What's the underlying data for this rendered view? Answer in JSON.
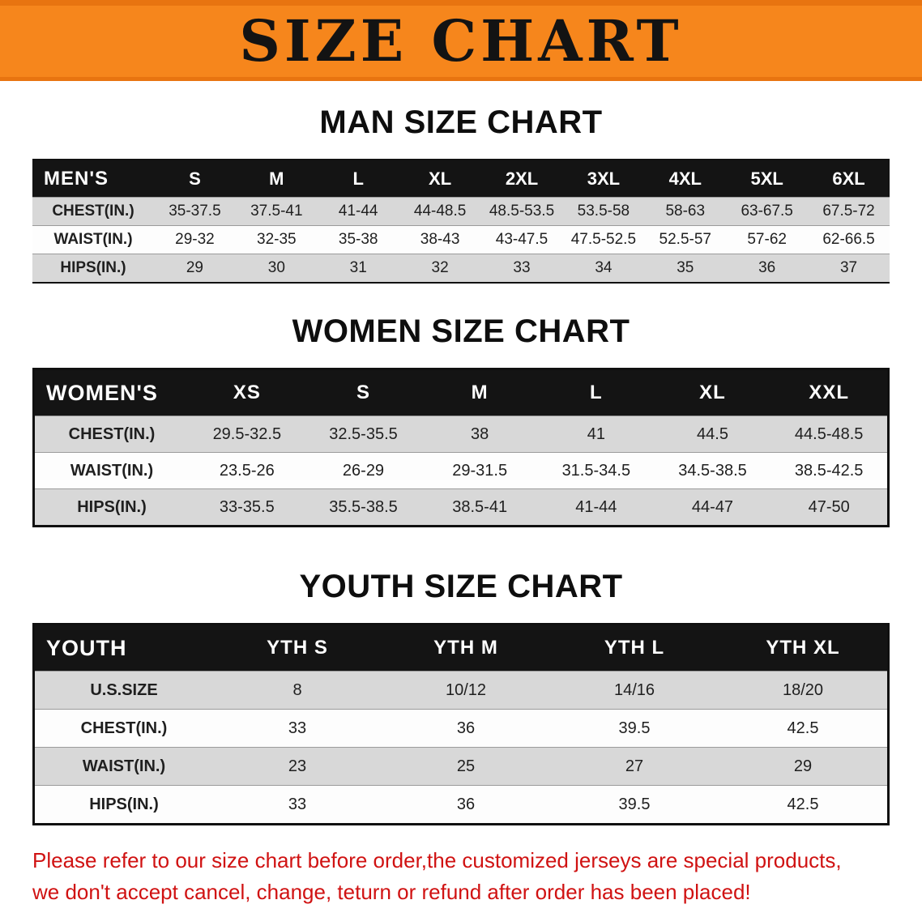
{
  "banner": {
    "title": "SIZE CHART"
  },
  "sections": [
    {
      "heading": "MAN SIZE CHART",
      "table": {
        "header": [
          "MEN'S",
          "S",
          "M",
          "L",
          "XL",
          "2XL",
          "3XL",
          "4XL",
          "5XL",
          "6XL"
        ],
        "rows": [
          {
            "label": "CHEST(IN.)",
            "values": [
              "35-37.5",
              "37.5-41",
              "41-44",
              "44-48.5",
              "48.5-53.5",
              "53.5-58",
              "58-63",
              "63-67.5",
              "67.5-72"
            ]
          },
          {
            "label": "WAIST(IN.)",
            "values": [
              "29-32",
              "32-35",
              "35-38",
              "38-43",
              "43-47.5",
              "47.5-52.5",
              "52.5-57",
              "57-62",
              "62-66.5"
            ]
          },
          {
            "label": "HIPS(IN.)",
            "values": [
              "29",
              "30",
              "31",
              "32",
              "33",
              "34",
              "35",
              "36",
              "37"
            ]
          }
        ]
      }
    },
    {
      "heading": "WOMEN SIZE CHART",
      "table": {
        "header": [
          "WOMEN'S",
          "XS",
          "S",
          "M",
          "L",
          "XL",
          "XXL"
        ],
        "rows": [
          {
            "label": "CHEST(IN.)",
            "values": [
              "29.5-32.5",
              "32.5-35.5",
              "38",
              "41",
              "44.5",
              "44.5-48.5"
            ]
          },
          {
            "label": "WAIST(IN.)",
            "values": [
              "23.5-26",
              "26-29",
              "29-31.5",
              "31.5-34.5",
              "34.5-38.5",
              "38.5-42.5"
            ]
          },
          {
            "label": "HIPS(IN.)",
            "values": [
              "33-35.5",
              "35.5-38.5",
              "38.5-41",
              "41-44",
              "44-47",
              "47-50"
            ]
          }
        ]
      }
    },
    {
      "heading": "YOUTH SIZE CHART",
      "table": {
        "header": [
          "YOUTH",
          "YTH S",
          "YTH M",
          "YTH L",
          "YTH XL"
        ],
        "rows": [
          {
            "label": "U.S.SIZE",
            "values": [
              "8",
              "10/12",
              "14/16",
              "18/20"
            ]
          },
          {
            "label": "CHEST(IN.)",
            "values": [
              "33",
              "36",
              "39.5",
              "42.5"
            ]
          },
          {
            "label": "WAIST(IN.)",
            "values": [
              "23",
              "25",
              "27",
              "29"
            ]
          },
          {
            "label": "HIPS(IN.)",
            "values": [
              "33",
              "36",
              "39.5",
              "42.5"
            ]
          }
        ]
      }
    }
  ],
  "notice": {
    "line1": "Please refer to our size chart before order,the customized jerseys are special products,",
    "line2": "we don't accept cancel, change, teturn or refund after order has been placed!"
  },
  "colors": {
    "banner_bg": "#f6861c",
    "banner_border": "#e87410",
    "table_header_bg": "#141414",
    "shaded_row_bg": "#d8d8d8",
    "notice_red": "#d01212"
  }
}
